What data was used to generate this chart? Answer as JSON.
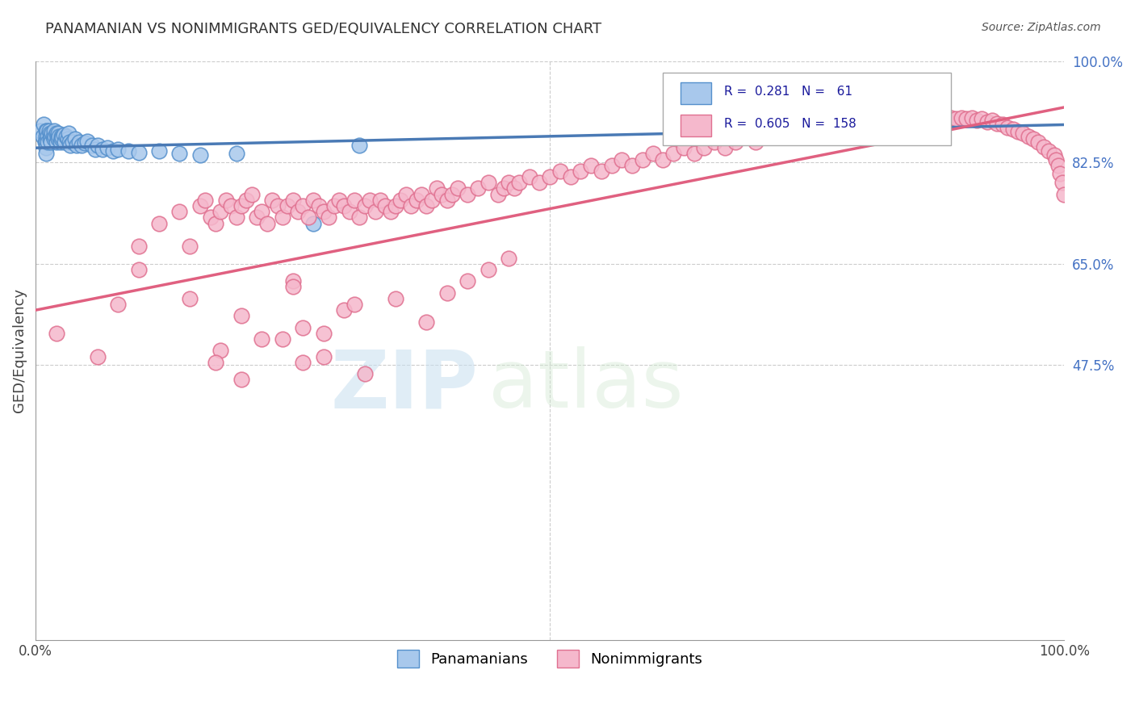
{
  "title": "PANAMANIAN VS NONIMMIGRANTS GED/EQUIVALENCY CORRELATION CHART",
  "source_text": "Source: ZipAtlas.com",
  "ylabel": "GED/Equivalency",
  "xlim": [
    0,
    1
  ],
  "ylim": [
    0,
    1
  ],
  "ytick_labels_right": [
    "47.5%",
    "65.0%",
    "82.5%",
    "100.0%"
  ],
  "ytick_vals_right": [
    0.475,
    0.65,
    0.825,
    1.0
  ],
  "legend_blue_r": "0.281",
  "legend_blue_n": "61",
  "legend_pink_r": "0.605",
  "legend_pink_n": "158",
  "blue_color": "#a8c8ec",
  "blue_edge_color": "#5590cc",
  "blue_line_color": "#4a7ab5",
  "pink_color": "#f5b8cc",
  "pink_edge_color": "#e07090",
  "pink_line_color": "#e06080",
  "background_color": "#ffffff",
  "watermark_zip": "ZIP",
  "watermark_atlas": "atlas",
  "blue_scatter_x": [
    0.005,
    0.007,
    0.008,
    0.009,
    0.01,
    0.01,
    0.01,
    0.01,
    0.01,
    0.011,
    0.012,
    0.012,
    0.013,
    0.014,
    0.014,
    0.015,
    0.015,
    0.016,
    0.017,
    0.018,
    0.018,
    0.019,
    0.02,
    0.02,
    0.021,
    0.022,
    0.022,
    0.023,
    0.024,
    0.025,
    0.025,
    0.026,
    0.027,
    0.028,
    0.03,
    0.031,
    0.032,
    0.033,
    0.034,
    0.036,
    0.038,
    0.04,
    0.042,
    0.045,
    0.048,
    0.05,
    0.055,
    0.058,
    0.06,
    0.065,
    0.07,
    0.075,
    0.08,
    0.09,
    0.1,
    0.12,
    0.14,
    0.16,
    0.195,
    0.27,
    0.315
  ],
  "blue_scatter_y": [
    0.88,
    0.87,
    0.89,
    0.86,
    0.88,
    0.87,
    0.86,
    0.85,
    0.84,
    0.88,
    0.87,
    0.86,
    0.88,
    0.875,
    0.865,
    0.87,
    0.86,
    0.875,
    0.87,
    0.865,
    0.88,
    0.87,
    0.875,
    0.86,
    0.87,
    0.875,
    0.865,
    0.87,
    0.86,
    0.87,
    0.865,
    0.868,
    0.872,
    0.86,
    0.87,
    0.865,
    0.875,
    0.86,
    0.855,
    0.86,
    0.865,
    0.855,
    0.86,
    0.855,
    0.858,
    0.862,
    0.855,
    0.848,
    0.855,
    0.848,
    0.85,
    0.845,
    0.848,
    0.845,
    0.842,
    0.845,
    0.84,
    0.838,
    0.84,
    0.72,
    0.855
  ],
  "pink_scatter_x": [
    0.02,
    0.06,
    0.08,
    0.1,
    0.12,
    0.14,
    0.15,
    0.16,
    0.165,
    0.17,
    0.175,
    0.18,
    0.185,
    0.19,
    0.195,
    0.2,
    0.205,
    0.21,
    0.215,
    0.22,
    0.225,
    0.23,
    0.235,
    0.24,
    0.245,
    0.25,
    0.255,
    0.26,
    0.265,
    0.27,
    0.275,
    0.28,
    0.285,
    0.29,
    0.295,
    0.3,
    0.305,
    0.31,
    0.315,
    0.32,
    0.325,
    0.33,
    0.335,
    0.34,
    0.345,
    0.35,
    0.355,
    0.36,
    0.365,
    0.37,
    0.375,
    0.38,
    0.385,
    0.39,
    0.395,
    0.4,
    0.405,
    0.41,
    0.42,
    0.43,
    0.44,
    0.45,
    0.455,
    0.46,
    0.465,
    0.47,
    0.48,
    0.49,
    0.5,
    0.51,
    0.52,
    0.53,
    0.54,
    0.55,
    0.56,
    0.57,
    0.58,
    0.59,
    0.6,
    0.61,
    0.62,
    0.63,
    0.64,
    0.65,
    0.66,
    0.67,
    0.68,
    0.69,
    0.7,
    0.71,
    0.72,
    0.73,
    0.74,
    0.75,
    0.76,
    0.77,
    0.78,
    0.79,
    0.8,
    0.81,
    0.82,
    0.83,
    0.84,
    0.85,
    0.86,
    0.87,
    0.875,
    0.88,
    0.885,
    0.89,
    0.895,
    0.9,
    0.905,
    0.91,
    0.915,
    0.92,
    0.925,
    0.93,
    0.935,
    0.94,
    0.945,
    0.95,
    0.955,
    0.96,
    0.965,
    0.97,
    0.975,
    0.98,
    0.985,
    0.99,
    0.992,
    0.994,
    0.996,
    0.998,
    1.0,
    0.1,
    0.15,
    0.2,
    0.25,
    0.18,
    0.22,
    0.26,
    0.175,
    0.3,
    0.25,
    0.31,
    0.2,
    0.28,
    0.32,
    0.24,
    0.35,
    0.38,
    0.26,
    0.4,
    0.42,
    0.28,
    0.44,
    0.46
  ],
  "pink_scatter_y": [
    0.53,
    0.49,
    0.58,
    0.68,
    0.72,
    0.74,
    0.68,
    0.75,
    0.76,
    0.73,
    0.72,
    0.74,
    0.76,
    0.75,
    0.73,
    0.75,
    0.76,
    0.77,
    0.73,
    0.74,
    0.72,
    0.76,
    0.75,
    0.73,
    0.75,
    0.76,
    0.74,
    0.75,
    0.73,
    0.76,
    0.75,
    0.74,
    0.73,
    0.75,
    0.76,
    0.75,
    0.74,
    0.76,
    0.73,
    0.75,
    0.76,
    0.74,
    0.76,
    0.75,
    0.74,
    0.75,
    0.76,
    0.77,
    0.75,
    0.76,
    0.77,
    0.75,
    0.76,
    0.78,
    0.77,
    0.76,
    0.77,
    0.78,
    0.77,
    0.78,
    0.79,
    0.77,
    0.78,
    0.79,
    0.78,
    0.79,
    0.8,
    0.79,
    0.8,
    0.81,
    0.8,
    0.81,
    0.82,
    0.81,
    0.82,
    0.83,
    0.82,
    0.83,
    0.84,
    0.83,
    0.84,
    0.85,
    0.84,
    0.85,
    0.86,
    0.85,
    0.86,
    0.87,
    0.86,
    0.87,
    0.88,
    0.87,
    0.88,
    0.875,
    0.88,
    0.885,
    0.88,
    0.888,
    0.89,
    0.892,
    0.888,
    0.892,
    0.895,
    0.895,
    0.898,
    0.9,
    0.898,
    0.9,
    0.9,
    0.902,
    0.9,
    0.902,
    0.9,
    0.902,
    0.898,
    0.9,
    0.895,
    0.898,
    0.892,
    0.89,
    0.885,
    0.882,
    0.878,
    0.875,
    0.87,
    0.865,
    0.86,
    0.852,
    0.845,
    0.838,
    0.83,
    0.82,
    0.805,
    0.79,
    0.77,
    0.64,
    0.59,
    0.56,
    0.62,
    0.5,
    0.52,
    0.54,
    0.48,
    0.57,
    0.61,
    0.58,
    0.45,
    0.49,
    0.46,
    0.52,
    0.59,
    0.55,
    0.48,
    0.6,
    0.62,
    0.53,
    0.64,
    0.66
  ]
}
